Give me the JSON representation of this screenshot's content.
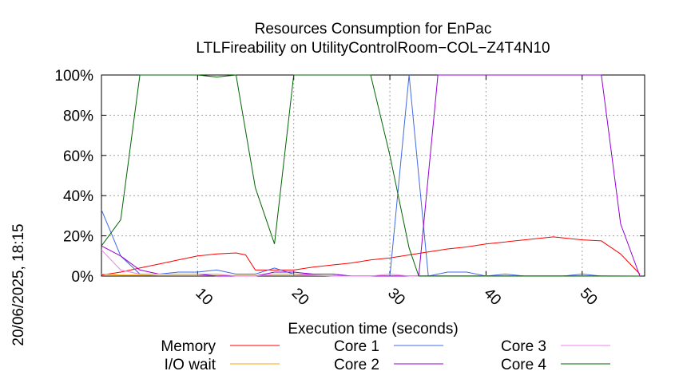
{
  "chart_data": {
    "type": "line",
    "title": "Resources Consumption for EnPac",
    "subtitle": "LTLFireability on UtilityControlRoom−COL−Z4T4N10",
    "xlabel": "Execution time (seconds)",
    "ylabel": "",
    "side_label": "20/06/2025, 18:15",
    "xlim": [
      0,
      56.5
    ],
    "ylim": [
      0,
      100
    ],
    "x_ticks": [
      10,
      20,
      30,
      40,
      50
    ],
    "x_tick_labels": [
      "10",
      "20",
      "30",
      "40",
      "50"
    ],
    "y_ticks": [
      0,
      20,
      40,
      60,
      80,
      100
    ],
    "y_tick_labels": [
      "0%",
      "20%",
      "40%",
      "60%",
      "80%",
      "100%"
    ],
    "grid": true,
    "legend_position": "bottom",
    "series": [
      {
        "name": "Memory",
        "color": "#ff0000",
        "x": [
          0,
          2,
          4,
          6,
          8,
          10,
          12,
          14,
          15,
          16,
          18,
          20,
          22,
          24,
          26,
          28,
          30,
          32,
          34,
          36,
          38,
          40,
          42,
          44,
          46,
          47,
          48,
          50,
          52,
          54,
          56
        ],
        "y": [
          0.5,
          2,
          4,
          6,
          8,
          10,
          11,
          11.5,
          10.5,
          3,
          3,
          3,
          4.5,
          5.5,
          6.5,
          8,
          9,
          10.5,
          12,
          13.5,
          14.5,
          16,
          17,
          18,
          19,
          19.5,
          19,
          18,
          17.5,
          11,
          1
        ]
      },
      {
        "name": "I/O wait",
        "color": "#ffa500",
        "x": [
          0,
          2,
          4,
          6,
          8,
          10,
          12,
          14,
          16,
          18,
          20,
          24,
          28,
          32,
          36,
          40,
          44,
          48,
          52,
          56
        ],
        "y": [
          1,
          0.5,
          0.5,
          0.3,
          0.3,
          0.3,
          0.3,
          0.3,
          0.3,
          0.3,
          0.3,
          0.2,
          0.2,
          0.2,
          0.2,
          0.2,
          0.2,
          0.2,
          0.2,
          0
        ]
      },
      {
        "name": "Core 1",
        "color": "#4169e1",
        "x": [
          0,
          2,
          4,
          6,
          8,
          10,
          12,
          14,
          16,
          18,
          20,
          22,
          24,
          26,
          28,
          30,
          32,
          34,
          36,
          38,
          40,
          42,
          44,
          46,
          48,
          50,
          52,
          54,
          56
        ],
        "y": [
          33,
          10,
          1,
          1,
          2,
          2,
          3,
          1,
          1,
          4,
          1,
          1,
          1,
          0,
          0,
          0,
          100,
          0,
          2,
          2,
          0,
          1,
          0,
          0,
          0,
          1,
          0,
          0,
          0
        ]
      },
      {
        "name": "Core 2",
        "color": "#9400d3",
        "x": [
          0,
          2,
          4,
          6,
          8,
          10,
          12,
          14,
          16,
          18,
          20,
          22,
          24,
          26,
          28,
          30,
          32,
          33,
          35,
          40,
          45,
          50,
          52,
          54,
          56
        ],
        "y": [
          15,
          10,
          3,
          1,
          1,
          1,
          0,
          0,
          0,
          2,
          2,
          1,
          1,
          0,
          0,
          0,
          0,
          0,
          100,
          100,
          100,
          100,
          100,
          26,
          0
        ]
      },
      {
        "name": "Core 3",
        "color": "#ee82ee",
        "x": [
          0,
          2,
          4,
          6,
          8,
          10,
          12,
          14,
          16,
          18,
          20,
          24,
          28,
          30,
          32,
          36,
          40,
          44,
          48,
          52,
          56
        ],
        "y": [
          13,
          3,
          1,
          1,
          1,
          1,
          1,
          0,
          0,
          1,
          1,
          0,
          0,
          1,
          0,
          0,
          0,
          0,
          0,
          0,
          0
        ]
      },
      {
        "name": "Core 4",
        "color": "#006400",
        "x": [
          0,
          2,
          4,
          6,
          8,
          10,
          12,
          14,
          16,
          18,
          20,
          22,
          24,
          26,
          28,
          30,
          32,
          33,
          35,
          40,
          45,
          50,
          54,
          56
        ],
        "y": [
          15,
          28,
          100,
          100,
          100,
          100,
          99,
          100,
          44,
          16,
          100,
          100,
          100,
          100,
          100,
          60,
          14,
          0,
          0,
          0,
          0,
          0,
          0,
          0
        ]
      }
    ]
  }
}
